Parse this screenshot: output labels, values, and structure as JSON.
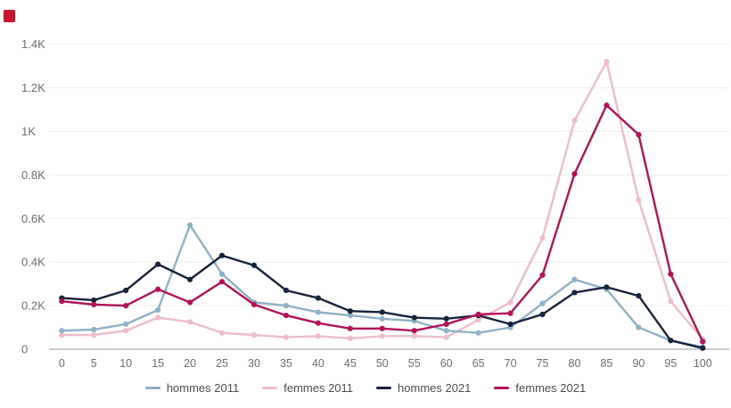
{
  "corner_marker": {
    "color": "#c5162c"
  },
  "chart_data": {
    "type": "line",
    "title": "",
    "xlabel": "",
    "ylabel": "",
    "x": [
      0,
      5,
      10,
      15,
      20,
      25,
      30,
      35,
      40,
      45,
      50,
      55,
      60,
      65,
      70,
      75,
      80,
      85,
      90,
      95,
      100
    ],
    "series": [
      {
        "name": "hommes 2011",
        "color": "#8fb1c4",
        "values": [
          85,
          90,
          115,
          180,
          570,
          345,
          215,
          200,
          170,
          155,
          140,
          130,
          85,
          75,
          100,
          210,
          320,
          275,
          100,
          40,
          10
        ]
      },
      {
        "name": "femmes 2011",
        "color": "#eebdca",
        "values": [
          65,
          65,
          85,
          145,
          125,
          75,
          65,
          55,
          60,
          50,
          60,
          60,
          55,
          135,
          215,
          510,
          1050,
          1320,
          685,
          220,
          45
        ]
      },
      {
        "name": "hommes 2021",
        "color": "#17233a",
        "values": [
          235,
          225,
          270,
          390,
          320,
          430,
          385,
          270,
          235,
          175,
          170,
          145,
          140,
          155,
          115,
          160,
          260,
          285,
          245,
          40,
          5
        ]
      },
      {
        "name": "femmes 2021",
        "color": "#b01356",
        "values": [
          220,
          205,
          200,
          275,
          215,
          310,
          205,
          155,
          120,
          95,
          95,
          85,
          115,
          160,
          165,
          340,
          805,
          1120,
          985,
          345,
          35
        ]
      }
    ],
    "ylim": [
      0,
      1400
    ],
    "yticks": [
      {
        "value": 0,
        "label": "0"
      },
      {
        "value": 200,
        "label": "0.2K"
      },
      {
        "value": 400,
        "label": "0.4K"
      },
      {
        "value": 600,
        "label": "0.6K"
      },
      {
        "value": 800,
        "label": "0.8K"
      },
      {
        "value": 1000,
        "label": "1K"
      },
      {
        "value": 1200,
        "label": "1.2K"
      },
      {
        "value": 1400,
        "label": "1.4K"
      }
    ],
    "grid": true,
    "legend_position": "bottom",
    "grid_color": "#ededed",
    "axis_color": "#b9b9b9",
    "tick_text_color": "#6d6d6d",
    "legend_text_color": "#4c4c4c"
  }
}
